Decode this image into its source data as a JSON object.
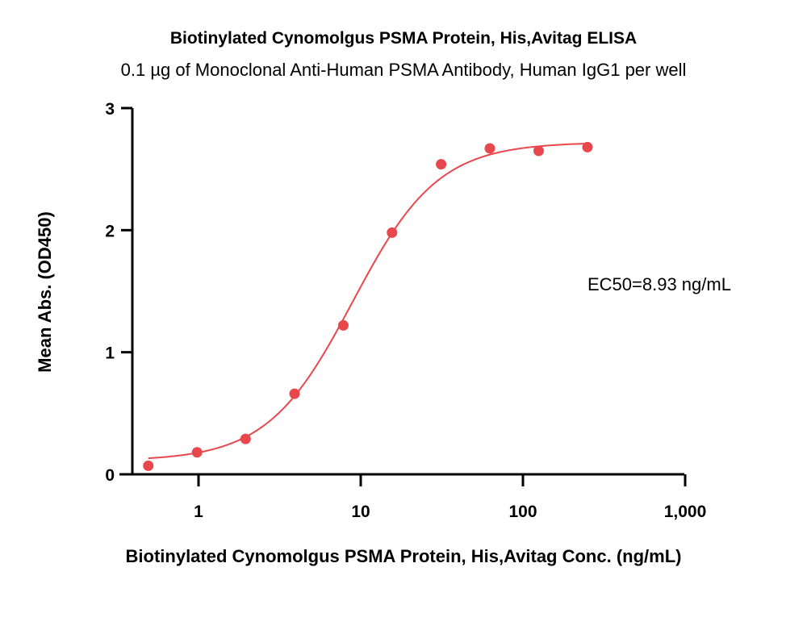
{
  "chart_data": {
    "type": "scatter",
    "title": "Biotinylated Cynomolgus PSMA Protein, His,Avitag ELISA",
    "subtitle": "0.1 µg of Monoclonal Anti-Human PSMA Antibody, Human IgG1 per well",
    "xlabel": "Biotinylated Cynomolgus PSMA Protein, His,Avitag Conc. (ng/mL)",
    "ylabel": "Mean Abs. (OD450)",
    "x_scale": "log",
    "xlim": [
      0.4,
      1000
    ],
    "ylim": [
      0,
      3
    ],
    "x_ticks": [
      {
        "value": 1,
        "label": "1"
      },
      {
        "value": 10,
        "label": "10"
      },
      {
        "value": 100,
        "label": "100"
      },
      {
        "value": 1000,
        "label": "1,000"
      }
    ],
    "y_ticks": [
      {
        "value": 0,
        "label": "0"
      },
      {
        "value": 1,
        "label": "1"
      },
      {
        "value": 2,
        "label": "2"
      },
      {
        "value": 3,
        "label": "3"
      }
    ],
    "series": [
      {
        "color": "#e8474c",
        "points": [
          {
            "x": 0.49,
            "y": 0.07
          },
          {
            "x": 0.98,
            "y": 0.18
          },
          {
            "x": 1.95,
            "y": 0.29
          },
          {
            "x": 3.91,
            "y": 0.66
          },
          {
            "x": 7.81,
            "y": 1.22
          },
          {
            "x": 15.6,
            "y": 1.98
          },
          {
            "x": 31.3,
            "y": 2.54
          },
          {
            "x": 62.5,
            "y": 2.67
          },
          {
            "x": 125,
            "y": 2.65
          },
          {
            "x": 250,
            "y": 2.68
          }
        ],
        "fit": {
          "model": "4PL",
          "bottom": 0.11,
          "top": 2.72,
          "ec50": 8.93,
          "hill": 1.65
        }
      }
    ],
    "annotation": "EC50=8.93 ng/mL",
    "grid": false,
    "legend": "none"
  }
}
